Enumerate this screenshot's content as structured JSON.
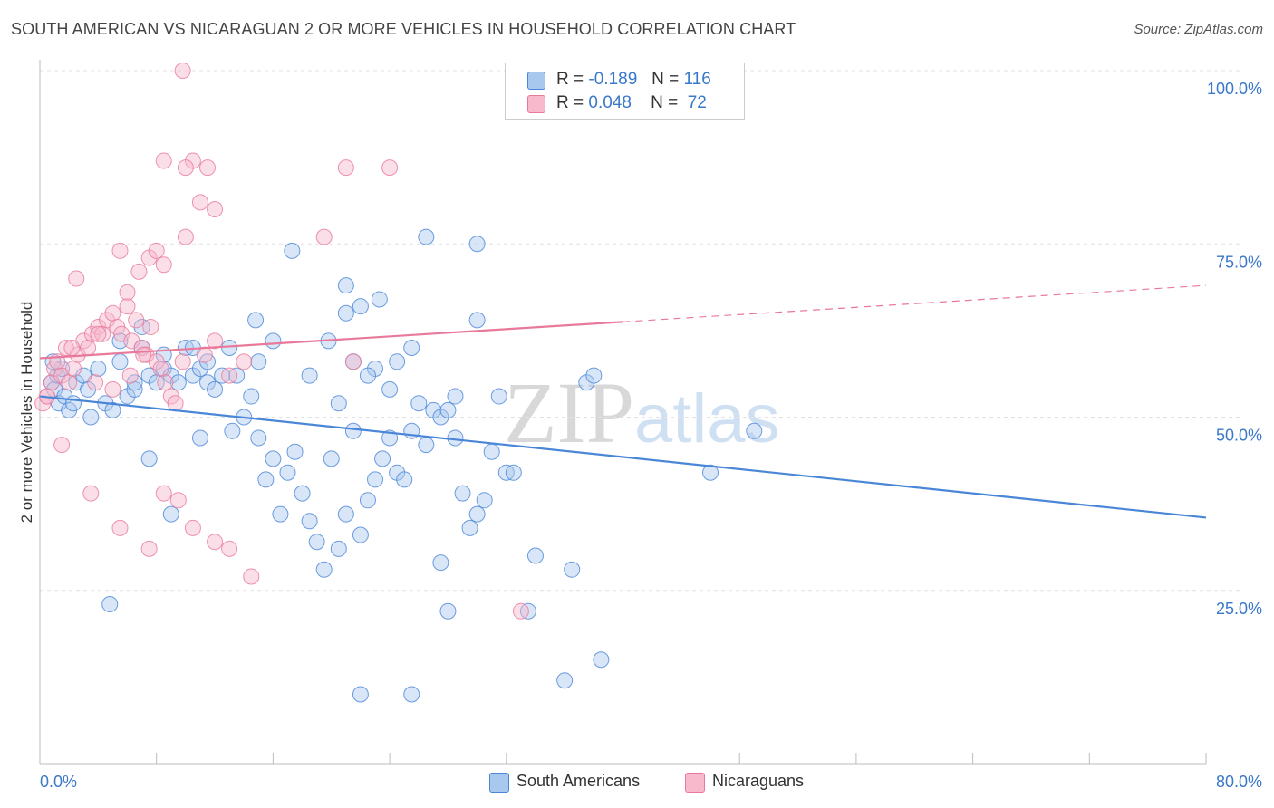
{
  "title": "SOUTH AMERICAN VS NICARAGUAN 2 OR MORE VEHICLES IN HOUSEHOLD CORRELATION CHART",
  "source": "Source: ZipAtlas.com",
  "watermark": {
    "zip": "ZIP",
    "atlas": "atlas"
  },
  "legend": {
    "rows": [
      {
        "r_label": "R =",
        "r_value": "-0.189",
        "n_label": "N =",
        "n_value": "116",
        "color": "#a9c8ee"
      },
      {
        "r_label": "R =",
        "r_value": "0.048",
        "n_label": "N =",
        "n_value": "72",
        "color": "#f7b9cb"
      }
    ]
  },
  "bottom_legend": [
    {
      "label": "South Americans",
      "color": "#a9c8ee"
    },
    {
      "label": "Nicaraguans",
      "color": "#f7b9cb"
    }
  ],
  "chart_data": {
    "type": "scatter",
    "title": "SOUTH AMERICAN VS NICARAGUAN 2 OR MORE VEHICLES IN HOUSEHOLD CORRELATION CHART",
    "xlabel": "",
    "ylabel": "2 or more Vehicles in Household",
    "xlim": [
      0,
      80
    ],
    "ylim": [
      0,
      100
    ],
    "x_tick_labels": [
      "0.0%",
      "80.0%"
    ],
    "y_tick_labels": [
      "100.0%",
      "75.0%",
      "50.0%",
      "25.0%"
    ],
    "y_ticks": [
      100,
      75,
      50,
      25
    ],
    "grid": true,
    "legend_position": "top-center",
    "series": [
      {
        "name": "South Americans",
        "color": "#4a86d8",
        "fill": "#a9c8ee",
        "trend": {
          "x": [
            0,
            80
          ],
          "y": [
            53.0,
            35.5
          ],
          "dashed_from": null
        },
        "points": [
          [
            0.8,
            55
          ],
          [
            1.0,
            54
          ],
          [
            1.2,
            56
          ],
          [
            1.3,
            52
          ],
          [
            1.5,
            57
          ],
          [
            0.9,
            58
          ],
          [
            1.7,
            53
          ],
          [
            2.0,
            51
          ],
          [
            2.3,
            52
          ],
          [
            2.5,
            55
          ],
          [
            3.0,
            56
          ],
          [
            3.3,
            54
          ],
          [
            3.5,
            50
          ],
          [
            4.0,
            57
          ],
          [
            4.5,
            52
          ],
          [
            5.0,
            51
          ],
          [
            5.5,
            58
          ],
          [
            6.0,
            53
          ],
          [
            6.5,
            54
          ],
          [
            7.0,
            60
          ],
          [
            7.5,
            56
          ],
          [
            8.0,
            55
          ],
          [
            8.5,
            57
          ],
          [
            9.0,
            56
          ],
          [
            9.5,
            55
          ],
          [
            10.0,
            60
          ],
          [
            10.5,
            56
          ],
          [
            11.0,
            57
          ],
          [
            11.5,
            55
          ],
          [
            12.0,
            54
          ],
          [
            13.0,
            60
          ],
          [
            13.5,
            56
          ],
          [
            14.0,
            50
          ],
          [
            14.5,
            53
          ],
          [
            15.0,
            47
          ],
          [
            15.5,
            41
          ],
          [
            16.0,
            44
          ],
          [
            16.5,
            36
          ],
          [
            17.0,
            42
          ],
          [
            17.5,
            45
          ],
          [
            18.0,
            39
          ],
          [
            18.5,
            35
          ],
          [
            19.0,
            32
          ],
          [
            19.5,
            28
          ],
          [
            20.0,
            44
          ],
          [
            20.5,
            31
          ],
          [
            21.0,
            36
          ],
          [
            21.5,
            48
          ],
          [
            22.0,
            33
          ],
          [
            22.5,
            38
          ],
          [
            23.0,
            41
          ],
          [
            23.5,
            44
          ],
          [
            24.0,
            47
          ],
          [
            24.5,
            42
          ],
          [
            25.0,
            41
          ],
          [
            25.5,
            48
          ],
          [
            26.0,
            52
          ],
          [
            26.5,
            46
          ],
          [
            27.0,
            51
          ],
          [
            27.5,
            50
          ],
          [
            28.0,
            51
          ],
          [
            28.5,
            47
          ],
          [
            29.0,
            39
          ],
          [
            29.5,
            34
          ],
          [
            30.0,
            36
          ],
          [
            30.5,
            38
          ],
          [
            31.0,
            45
          ],
          [
            31.5,
            53
          ],
          [
            32.0,
            42
          ],
          [
            32.5,
            42
          ],
          [
            9.0,
            36
          ],
          [
            7.5,
            44
          ],
          [
            4.8,
            23
          ],
          [
            13.2,
            48
          ],
          [
            11.0,
            47
          ],
          [
            14.8,
            64
          ],
          [
            21.0,
            69
          ],
          [
            23.3,
            67
          ],
          [
            17.3,
            74
          ],
          [
            26.5,
            76
          ],
          [
            30.0,
            75
          ],
          [
            33.5,
            22
          ],
          [
            36.0,
            12
          ],
          [
            28.0,
            22
          ],
          [
            25.5,
            10
          ],
          [
            22.0,
            10
          ],
          [
            36.5,
            28
          ],
          [
            38.5,
            15
          ],
          [
            34.0,
            30
          ],
          [
            27.5,
            29
          ],
          [
            18.5,
            56
          ],
          [
            19.8,
            61
          ],
          [
            21.5,
            58
          ],
          [
            23.0,
            57
          ],
          [
            24.5,
            58
          ],
          [
            20.5,
            52
          ],
          [
            22.5,
            56
          ],
          [
            24.0,
            54
          ],
          [
            21.0,
            65
          ],
          [
            22.0,
            66
          ],
          [
            16.0,
            61
          ],
          [
            15.0,
            58
          ],
          [
            12.5,
            56
          ],
          [
            11.5,
            58
          ],
          [
            10.5,
            60
          ],
          [
            8.5,
            59
          ],
          [
            7.0,
            63
          ],
          [
            6.5,
            55
          ],
          [
            5.5,
            61
          ],
          [
            30.0,
            64
          ],
          [
            37.5,
            55
          ],
          [
            38.0,
            56
          ],
          [
            28.5,
            53
          ],
          [
            25.5,
            60
          ],
          [
            46.0,
            42
          ],
          [
            49.0,
            48
          ]
        ]
      },
      {
        "name": "Nicaraguans",
        "color": "#e8799b",
        "fill": "#f7b9cb",
        "trend": {
          "x": [
            0,
            80
          ],
          "y": [
            58.5,
            69.0
          ],
          "dashed_from": 40
        },
        "points": [
          [
            0.2,
            52
          ],
          [
            0.5,
            53
          ],
          [
            0.8,
            55
          ],
          [
            1.0,
            57
          ],
          [
            1.2,
            58
          ],
          [
            1.5,
            56
          ],
          [
            1.8,
            60
          ],
          [
            2.0,
            55
          ],
          [
            2.3,
            57
          ],
          [
            2.6,
            59
          ],
          [
            3.0,
            61
          ],
          [
            3.3,
            60
          ],
          [
            3.6,
            62
          ],
          [
            4.0,
            63
          ],
          [
            4.3,
            62
          ],
          [
            4.6,
            64
          ],
          [
            5.0,
            65
          ],
          [
            5.3,
            63
          ],
          [
            5.6,
            62
          ],
          [
            6.0,
            66
          ],
          [
            6.3,
            61
          ],
          [
            6.6,
            64
          ],
          [
            7.0,
            60
          ],
          [
            7.3,
            59
          ],
          [
            7.6,
            63
          ],
          [
            8.0,
            58
          ],
          [
            8.3,
            57
          ],
          [
            8.6,
            55
          ],
          [
            9.0,
            53
          ],
          [
            9.3,
            52
          ],
          [
            1.5,
            46
          ],
          [
            3.5,
            39
          ],
          [
            5.5,
            34
          ],
          [
            7.5,
            31
          ],
          [
            8.5,
            39
          ],
          [
            9.5,
            38
          ],
          [
            10.5,
            34
          ],
          [
            12.0,
            32
          ],
          [
            13.0,
            31
          ],
          [
            14.5,
            27
          ],
          [
            6.0,
            68
          ],
          [
            6.8,
            71
          ],
          [
            7.5,
            73
          ],
          [
            8.0,
            74
          ],
          [
            8.5,
            72
          ],
          [
            2.5,
            70
          ],
          [
            5.5,
            74
          ],
          [
            10.0,
            76
          ],
          [
            11.0,
            81
          ],
          [
            12.0,
            80
          ],
          [
            8.5,
            87
          ],
          [
            10.5,
            87
          ],
          [
            10.0,
            86
          ],
          [
            11.5,
            86
          ],
          [
            21.0,
            86
          ],
          [
            24.0,
            86
          ],
          [
            9.8,
            100
          ],
          [
            19.5,
            76
          ],
          [
            4.0,
            62
          ],
          [
            12.0,
            61
          ],
          [
            2.2,
            60
          ],
          [
            3.8,
            55
          ],
          [
            5.0,
            54
          ],
          [
            6.2,
            56
          ],
          [
            7.1,
            59
          ],
          [
            9.8,
            58
          ],
          [
            11.3,
            59
          ],
          [
            14.0,
            58
          ],
          [
            21.5,
            58
          ],
          [
            33.0,
            22
          ],
          [
            0.5,
            53
          ],
          [
            13.0,
            56
          ]
        ]
      }
    ]
  }
}
